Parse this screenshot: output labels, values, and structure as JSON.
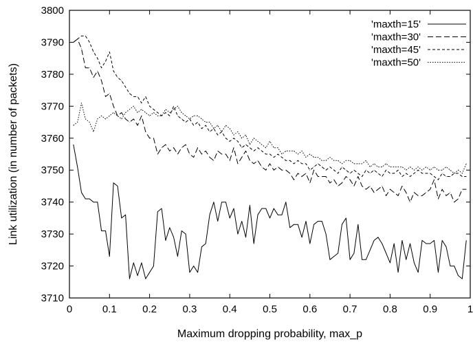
{
  "chart_data": {
    "type": "line",
    "title": "",
    "xlabel": "Maximum dropping probability, max_p",
    "ylabel": "Link utilization (in number of packets)",
    "xlim": [
      0,
      1
    ],
    "ylim": [
      3710,
      3800
    ],
    "xticks": [
      0,
      0.1,
      0.2,
      0.3,
      0.4,
      0.5,
      0.6,
      0.7,
      0.8,
      0.9,
      1
    ],
    "xtick_labels": [
      "0",
      "0.1",
      "0.2",
      "0.3",
      "0.4",
      "0.5",
      "0.6",
      "0.7",
      "0.8",
      "0.9",
      "1"
    ],
    "yticks": [
      3710,
      3720,
      3730,
      3740,
      3750,
      3760,
      3770,
      3780,
      3790,
      3800
    ],
    "ytick_labels": [
      "3710",
      "3720",
      "3730",
      "3740",
      "3750",
      "3760",
      "3770",
      "3780",
      "3790",
      "3800"
    ],
    "grid": false,
    "legend_position": "top-right",
    "series": [
      {
        "name": "'maxth=15'",
        "dash": "solid",
        "x": [
          0.01,
          0.02,
          0.03,
          0.04,
          0.05,
          0.06,
          0.07,
          0.08,
          0.09,
          0.1,
          0.11,
          0.12,
          0.13,
          0.14,
          0.15,
          0.16,
          0.17,
          0.18,
          0.19,
          0.2,
          0.21,
          0.22,
          0.23,
          0.24,
          0.25,
          0.26,
          0.27,
          0.28,
          0.29,
          0.3,
          0.31,
          0.32,
          0.33,
          0.34,
          0.35,
          0.36,
          0.37,
          0.38,
          0.39,
          0.4,
          0.41,
          0.42,
          0.43,
          0.44,
          0.45,
          0.46,
          0.47,
          0.48,
          0.49,
          0.5,
          0.51,
          0.52,
          0.53,
          0.54,
          0.55,
          0.56,
          0.57,
          0.58,
          0.59,
          0.6,
          0.61,
          0.62,
          0.63,
          0.64,
          0.65,
          0.66,
          0.67,
          0.68,
          0.69,
          0.7,
          0.71,
          0.72,
          0.73,
          0.74,
          0.75,
          0.76,
          0.77,
          0.78,
          0.79,
          0.8,
          0.81,
          0.82,
          0.83,
          0.84,
          0.85,
          0.86,
          0.87,
          0.88,
          0.89,
          0.9,
          0.91,
          0.92,
          0.93,
          0.94,
          0.95,
          0.96,
          0.97,
          0.98,
          0.99
        ],
        "values": [
          3758,
          3751,
          3743,
          3741,
          3741,
          3740,
          3740,
          3731,
          3731,
          3723,
          3746,
          3745,
          3735,
          3736,
          3716,
          3721,
          3717,
          3721,
          3716,
          3718,
          3720,
          3737,
          3738,
          3728,
          3732,
          3729,
          3723,
          3731,
          3730,
          3718,
          3720,
          3718,
          3726,
          3727,
          3736,
          3740,
          3734,
          3740,
          3740,
          3735,
          3738,
          3730,
          3734,
          3729,
          3739,
          3727,
          3736,
          3738,
          3738,
          3735,
          3738,
          3736,
          3736,
          3740,
          3732,
          3733,
          3733,
          3729,
          3734,
          3727,
          3733,
          3734,
          3734,
          3730,
          3722,
          3723,
          3724,
          3733,
          3735,
          3722,
          3724,
          3733,
          3722,
          3722,
          3725,
          3728,
          3729,
          3727,
          3724,
          3721,
          3727,
          3718,
          3728,
          3722,
          3727,
          3721,
          3718,
          3728,
          3727,
          3727,
          3728,
          3718,
          3728,
          3726,
          3720,
          3720,
          3717,
          3716,
          3728
        ],
        "color": "#000000"
      },
      {
        "name": "'maxth=30'",
        "dash": "long-dash",
        "x": [
          0.01,
          0.02,
          0.03,
          0.04,
          0.05,
          0.06,
          0.07,
          0.08,
          0.09,
          0.1,
          0.11,
          0.12,
          0.13,
          0.14,
          0.15,
          0.16,
          0.17,
          0.18,
          0.19,
          0.2,
          0.21,
          0.22,
          0.23,
          0.24,
          0.25,
          0.26,
          0.27,
          0.28,
          0.29,
          0.3,
          0.31,
          0.32,
          0.33,
          0.34,
          0.35,
          0.36,
          0.37,
          0.38,
          0.39,
          0.4,
          0.41,
          0.42,
          0.43,
          0.44,
          0.45,
          0.46,
          0.47,
          0.48,
          0.49,
          0.5,
          0.51,
          0.52,
          0.53,
          0.54,
          0.55,
          0.56,
          0.57,
          0.58,
          0.59,
          0.6,
          0.61,
          0.62,
          0.63,
          0.64,
          0.65,
          0.66,
          0.67,
          0.68,
          0.69,
          0.7,
          0.71,
          0.72,
          0.73,
          0.74,
          0.75,
          0.76,
          0.77,
          0.78,
          0.79,
          0.8,
          0.81,
          0.82,
          0.83,
          0.84,
          0.85,
          0.86,
          0.87,
          0.88,
          0.89,
          0.9,
          0.91,
          0.92,
          0.93,
          0.94,
          0.95,
          0.96,
          0.97,
          0.98,
          0.99
        ],
        "values": [
          3790,
          3791,
          3788,
          3782,
          3782,
          3779,
          3781,
          3778,
          3773,
          3774,
          3770,
          3767,
          3768,
          3766,
          3765,
          3766,
          3764,
          3767,
          3762,
          3760,
          3760,
          3755,
          3757,
          3758,
          3756,
          3757,
          3755,
          3757,
          3758,
          3755,
          3754,
          3757,
          3755,
          3756,
          3754,
          3753,
          3756,
          3755,
          3755,
          3753,
          3757,
          3752,
          3754,
          3756,
          3753,
          3752,
          3753,
          3751,
          3750,
          3752,
          3750,
          3751,
          3750,
          3750,
          3749,
          3747,
          3749,
          3748,
          3749,
          3746,
          3750,
          3748,
          3748,
          3748,
          3746,
          3747,
          3745,
          3746,
          3748,
          3747,
          3745,
          3748,
          3745,
          3744,
          3745,
          3743,
          3744,
          3745,
          3742,
          3744,
          3743,
          3742,
          3745,
          3743,
          3740,
          3743,
          3742,
          3742,
          3743,
          3744,
          3747,
          3741,
          3744,
          3742,
          3743,
          3740,
          3741,
          3744,
          3744
        ],
        "color": "#000000"
      },
      {
        "name": "'maxth=45'",
        "dash": "short-dash",
        "x": [
          0.01,
          0.02,
          0.03,
          0.04,
          0.05,
          0.06,
          0.07,
          0.08,
          0.09,
          0.1,
          0.11,
          0.12,
          0.13,
          0.14,
          0.15,
          0.16,
          0.17,
          0.18,
          0.19,
          0.2,
          0.21,
          0.22,
          0.23,
          0.24,
          0.25,
          0.26,
          0.27,
          0.28,
          0.29,
          0.3,
          0.31,
          0.32,
          0.33,
          0.34,
          0.35,
          0.36,
          0.37,
          0.38,
          0.39,
          0.4,
          0.41,
          0.42,
          0.43,
          0.44,
          0.45,
          0.46,
          0.47,
          0.48,
          0.49,
          0.5,
          0.51,
          0.52,
          0.53,
          0.54,
          0.55,
          0.56,
          0.57,
          0.58,
          0.59,
          0.6,
          0.61,
          0.62,
          0.63,
          0.64,
          0.65,
          0.66,
          0.67,
          0.68,
          0.69,
          0.7,
          0.71,
          0.72,
          0.73,
          0.74,
          0.75,
          0.76,
          0.77,
          0.78,
          0.79,
          0.8,
          0.81,
          0.82,
          0.83,
          0.84,
          0.85,
          0.86,
          0.87,
          0.88,
          0.89,
          0.9,
          0.91,
          0.92,
          0.93,
          0.94,
          0.95,
          0.96,
          0.97,
          0.98,
          0.99
        ],
        "values": [
          3790,
          3791,
          3792,
          3792,
          3790,
          3787,
          3785,
          3782,
          3784,
          3787,
          3781,
          3779,
          3778,
          3776,
          3774,
          3773,
          3773,
          3771,
          3773,
          3770,
          3769,
          3768,
          3767,
          3768,
          3767,
          3770,
          3767,
          3766,
          3765,
          3766,
          3764,
          3765,
          3763,
          3764,
          3762,
          3763,
          3761,
          3762,
          3760,
          3759,
          3760,
          3759,
          3757,
          3758,
          3757,
          3756,
          3757,
          3756,
          3755,
          3755,
          3754,
          3755,
          3754,
          3753,
          3753,
          3752,
          3753,
          3752,
          3752,
          3750,
          3751,
          3752,
          3751,
          3750,
          3751,
          3750,
          3749,
          3751,
          3750,
          3749,
          3750,
          3749,
          3748,
          3750,
          3749,
          3750,
          3749,
          3748,
          3750,
          3749,
          3749,
          3750,
          3748,
          3749,
          3748,
          3749,
          3750,
          3749,
          3749,
          3749,
          3748,
          3747,
          3749,
          3748,
          3748,
          3749,
          3749,
          3748,
          3748
        ],
        "color": "#000000"
      },
      {
        "name": "'maxth=50'",
        "dash": "dotted",
        "x": [
          0.01,
          0.02,
          0.03,
          0.04,
          0.05,
          0.06,
          0.07,
          0.08,
          0.09,
          0.1,
          0.11,
          0.12,
          0.13,
          0.14,
          0.15,
          0.16,
          0.17,
          0.18,
          0.19,
          0.2,
          0.21,
          0.22,
          0.23,
          0.24,
          0.25,
          0.26,
          0.27,
          0.28,
          0.29,
          0.3,
          0.31,
          0.32,
          0.33,
          0.34,
          0.35,
          0.36,
          0.37,
          0.38,
          0.39,
          0.4,
          0.41,
          0.42,
          0.43,
          0.44,
          0.45,
          0.46,
          0.47,
          0.48,
          0.49,
          0.5,
          0.51,
          0.52,
          0.53,
          0.54,
          0.55,
          0.56,
          0.57,
          0.58,
          0.59,
          0.6,
          0.61,
          0.62,
          0.63,
          0.64,
          0.65,
          0.66,
          0.67,
          0.68,
          0.69,
          0.7,
          0.71,
          0.72,
          0.73,
          0.74,
          0.75,
          0.76,
          0.77,
          0.78,
          0.79,
          0.8,
          0.81,
          0.82,
          0.83,
          0.84,
          0.85,
          0.86,
          0.87,
          0.88,
          0.89,
          0.9,
          0.91,
          0.92,
          0.93,
          0.94,
          0.95,
          0.96,
          0.97,
          0.98,
          0.99
        ],
        "values": [
          3764,
          3765,
          3771,
          3766,
          3765,
          3762,
          3766,
          3767,
          3766,
          3767,
          3768,
          3767,
          3766,
          3768,
          3769,
          3770,
          3768,
          3769,
          3768,
          3767,
          3768,
          3767,
          3767,
          3769,
          3768,
          3769,
          3770,
          3768,
          3767,
          3766,
          3767,
          3767,
          3766,
          3765,
          3765,
          3763,
          3764,
          3762,
          3764,
          3763,
          3761,
          3762,
          3760,
          3761,
          3758,
          3760,
          3759,
          3758,
          3757,
          3759,
          3757,
          3757,
          3755,
          3756,
          3756,
          3756,
          3755,
          3756,
          3754,
          3755,
          3754,
          3754,
          3753,
          3753,
          3754,
          3753,
          3753,
          3752,
          3753,
          3753,
          3752,
          3752,
          3752,
          3753,
          3751,
          3752,
          3751,
          3751,
          3752,
          3751,
          3751,
          3751,
          3751,
          3750,
          3751,
          3750,
          3751,
          3750,
          3751,
          3750,
          3751,
          3750,
          3750,
          3751,
          3750,
          3749,
          3750,
          3749,
          3752
        ],
        "color": "#000000"
      }
    ]
  }
}
